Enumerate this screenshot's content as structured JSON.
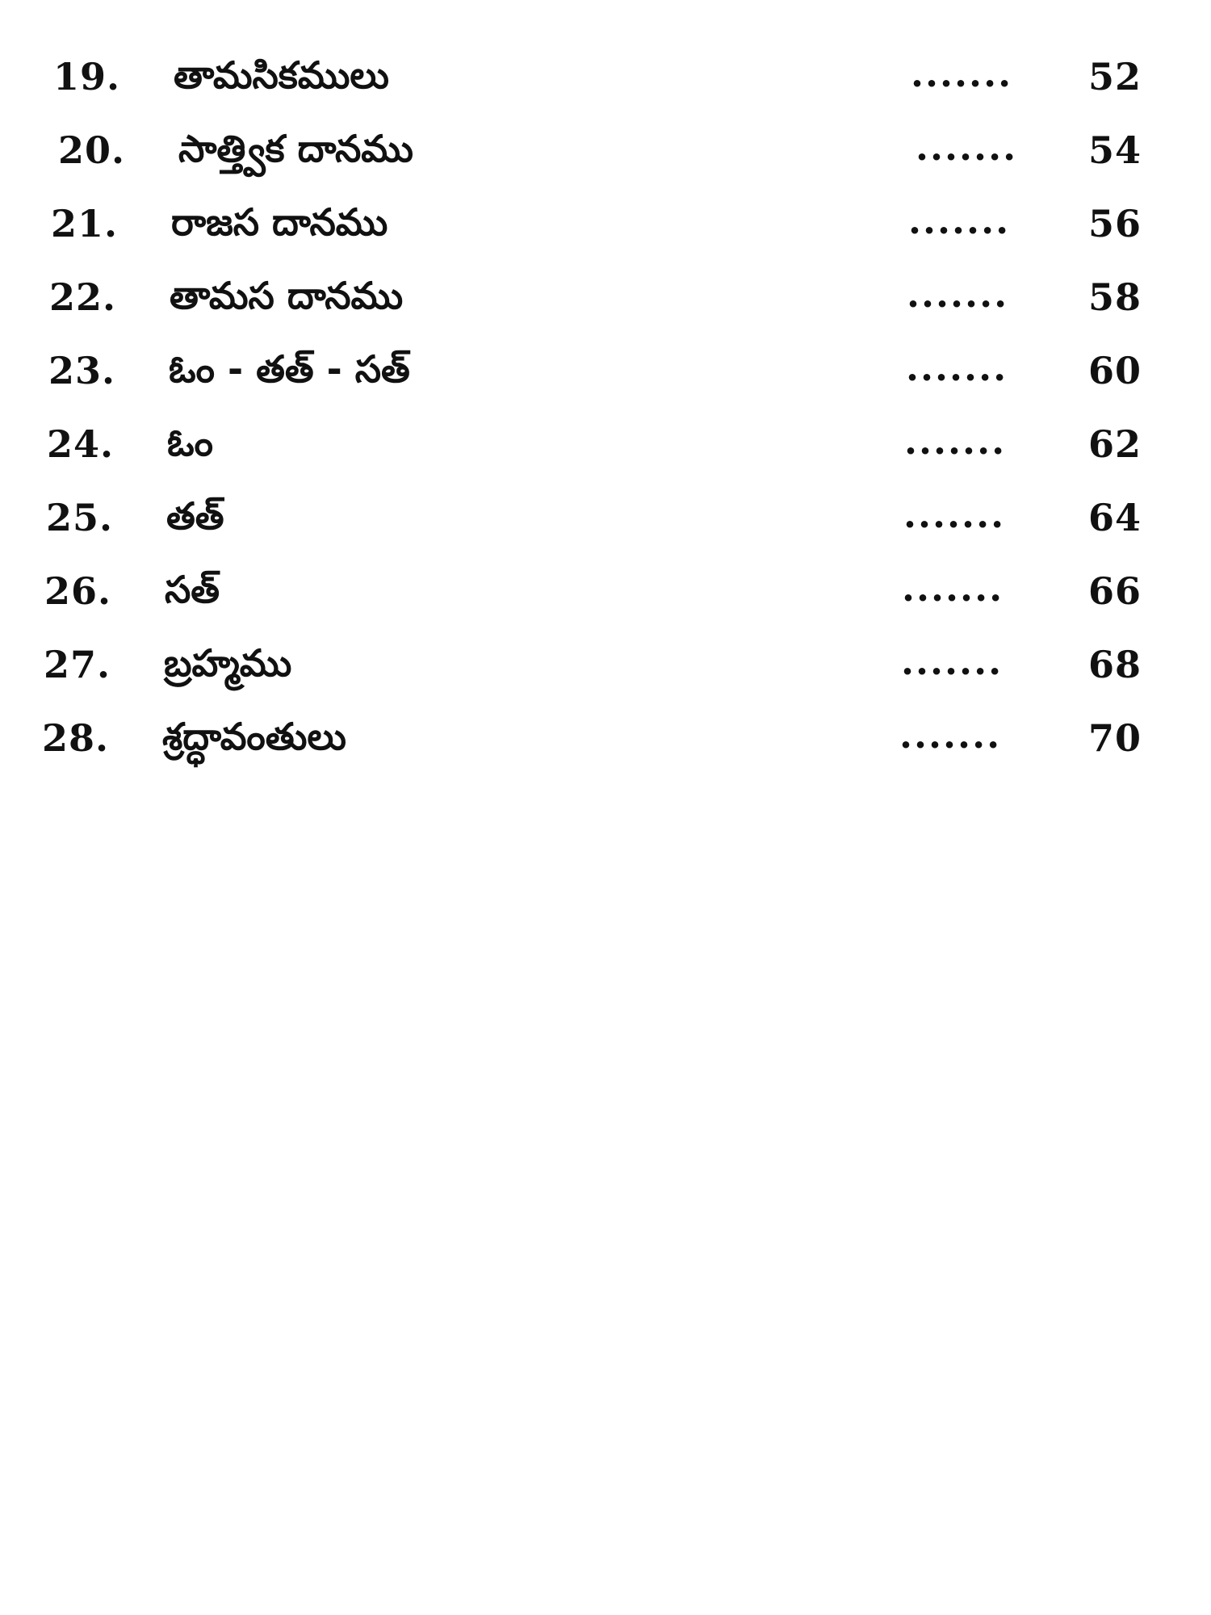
{
  "toc": {
    "entries": [
      {
        "number": "19.",
        "title": "తామసికములు",
        "leader": ".......",
        "page": "52"
      },
      {
        "number": "20.",
        "title": "సాత్త్విక దానము",
        "leader": ".......",
        "page": "54"
      },
      {
        "number": "21.",
        "title": "రాజస దానము",
        "leader": ".......",
        "page": "56"
      },
      {
        "number": "22.",
        "title": "తామస దానము",
        "leader": ".......",
        "page": "58"
      },
      {
        "number": "23.",
        "title": "ఓం - తత్ - సత్",
        "leader": ".......",
        "page": "60"
      },
      {
        "number": "24.",
        "title": "ఓం",
        "leader": ".......",
        "page": "62"
      },
      {
        "number": "25.",
        "title": "తత్",
        "leader": ".......",
        "page": "64"
      },
      {
        "number": "26.",
        "title": "సత్",
        "leader": ".......",
        "page": "66"
      },
      {
        "number": "27.",
        "title": "బ్రహ్మము",
        "leader": ".......",
        "page": "68"
      },
      {
        "number": "28.",
        "title": "శ్రద్ధావంతులు",
        "leader": ".......",
        "page": "70"
      }
    ]
  }
}
